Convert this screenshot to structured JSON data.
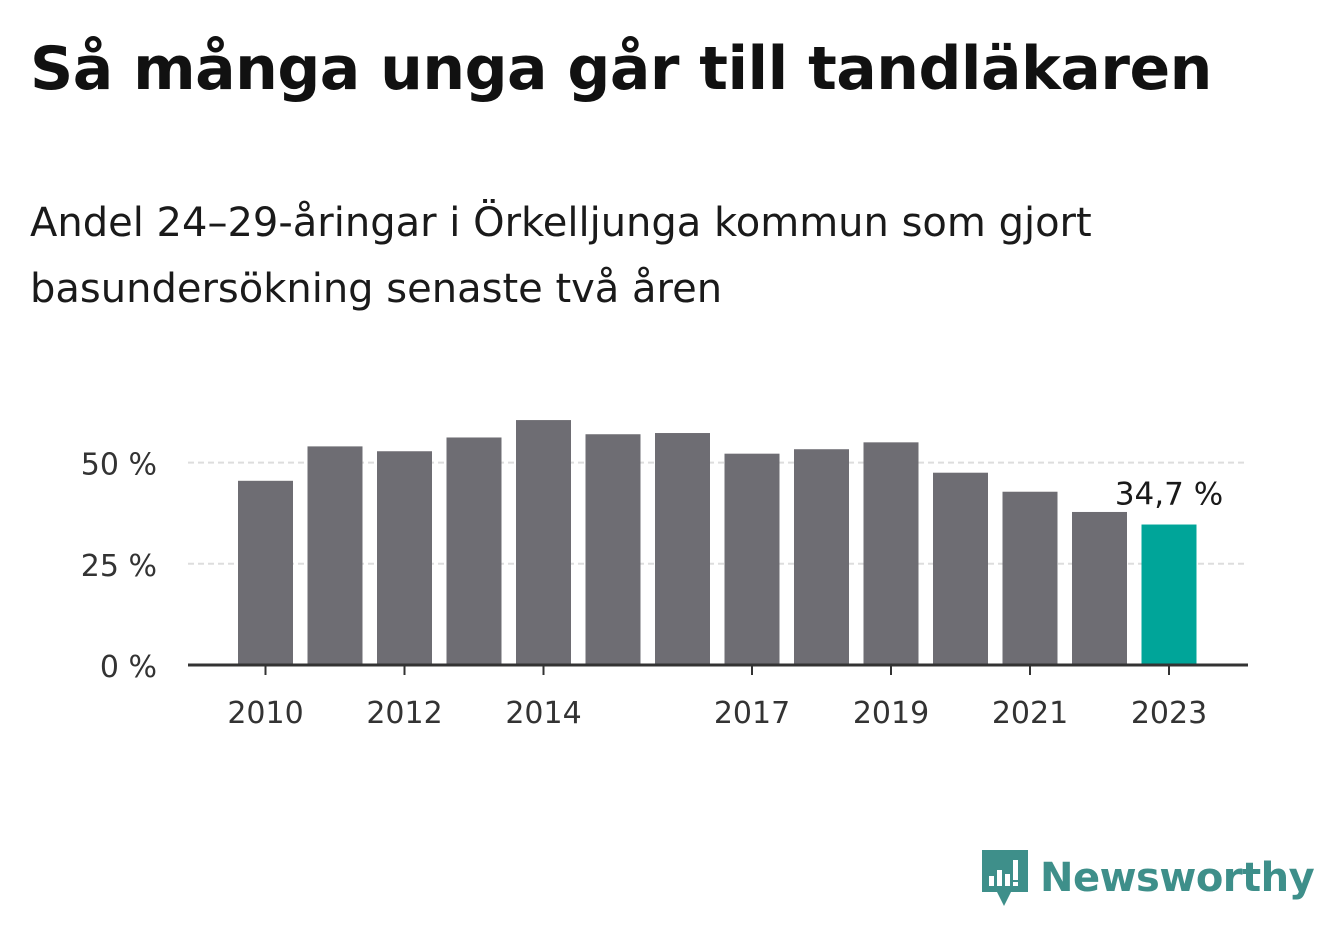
{
  "title": "Så många unga går till tandläkaren",
  "subtitle": "Andel 24–29-åringar i Örkelljunga kommun som gjort basundersökning senaste två åren",
  "brand": {
    "name": "Newsworthy",
    "icon": "newsworthy-logo-icon",
    "color": "#3e8f8a"
  },
  "chart_data": {
    "type": "bar",
    "categories": [
      "2010",
      "2011",
      "2012",
      "2013",
      "2014",
      "2015",
      "2016",
      "2017",
      "2018",
      "2019",
      "2020",
      "2021",
      "2022",
      "2023"
    ],
    "values": [
      45.5,
      54,
      52.8,
      56.2,
      60.5,
      57,
      57.3,
      52.2,
      53.3,
      55,
      47.5,
      42.8,
      37.8,
      34.7
    ],
    "ylim": [
      0,
      62
    ],
    "yticks": [
      0,
      25,
      50
    ],
    "ytick_labels": [
      "0 %",
      "25 %",
      "50 %"
    ],
    "xtick_labels": [
      "2010",
      "2012",
      "2014",
      "2017",
      "2019",
      "2021",
      "2023"
    ],
    "highlight": {
      "index": 13,
      "label": "34,7 %"
    },
    "colors": {
      "bar": "#6e6d73",
      "highlight": "#00a599",
      "grid": "#dddddd",
      "axis": "#333333"
    },
    "grid": true,
    "xlabel": "",
    "ylabel": ""
  }
}
